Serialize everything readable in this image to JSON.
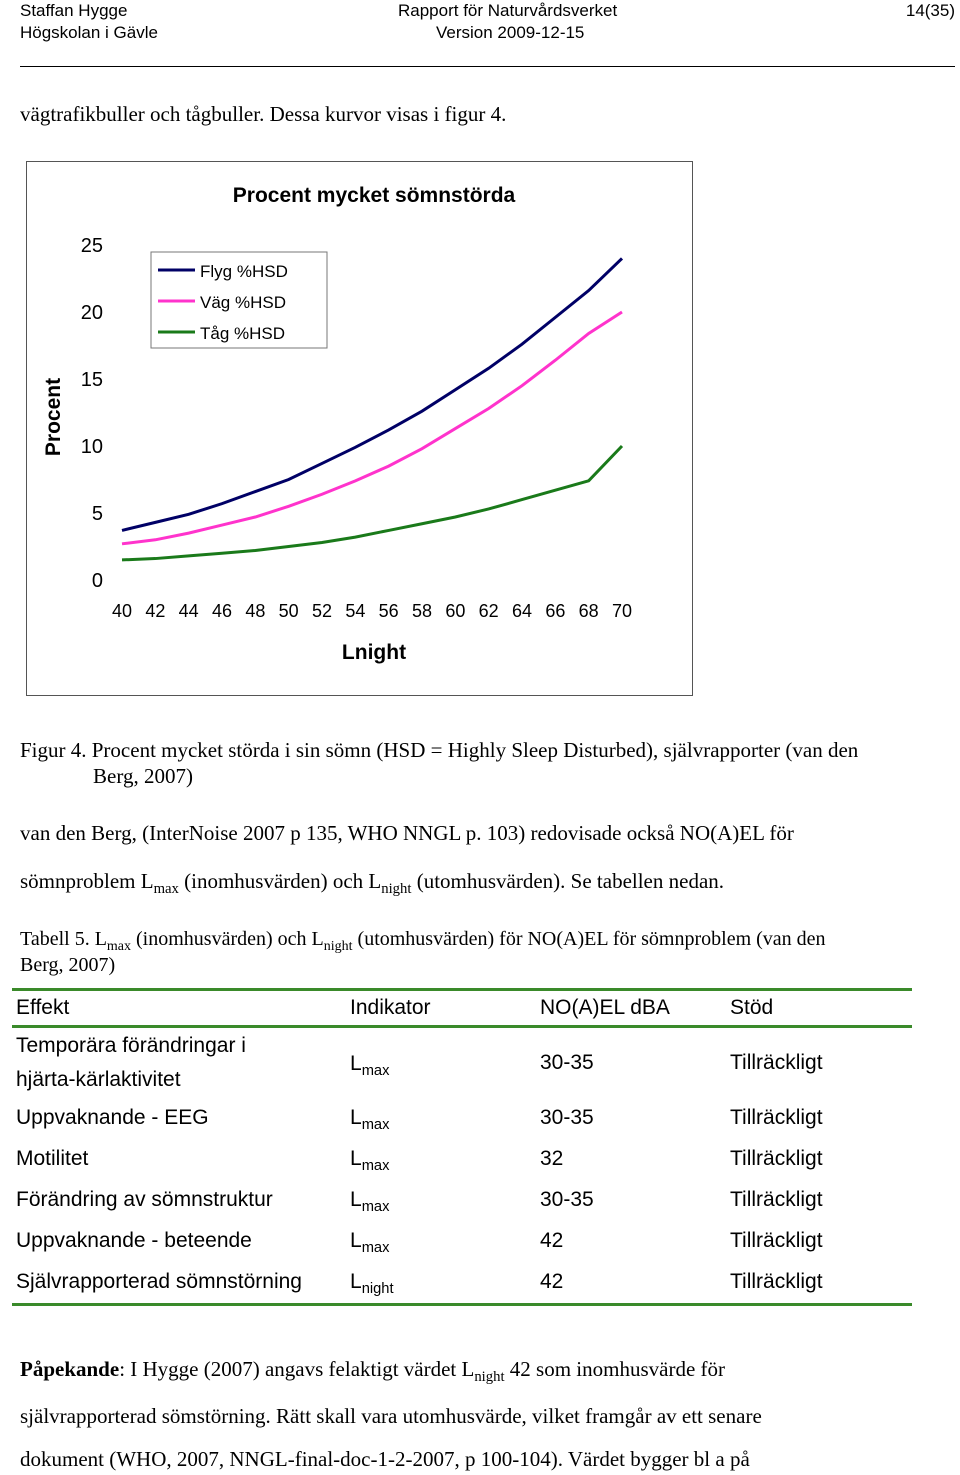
{
  "header": {
    "author": "Staffan Hygge",
    "institution": "Högskolan i Gävle",
    "report": "Rapport för Naturvårdsverket",
    "version": "Version 2009-12-15",
    "page": "14(35)"
  },
  "intro_line": "vägtrafikbuller och tågbuller. Dessa kurvor visas i figur 4.",
  "chart_data": {
    "type": "line",
    "title": "Procent mycket sömnstörda",
    "xlabel": "Lnight",
    "ylabel": "Procent",
    "x": [
      40,
      42,
      44,
      46,
      48,
      50,
      52,
      54,
      56,
      58,
      60,
      62,
      64,
      66,
      68,
      70
    ],
    "x_ticks": [
      "40",
      "42",
      "44",
      "46",
      "48",
      "50",
      "52",
      "54",
      "56",
      "58",
      "60",
      "62",
      "64",
      "66",
      "68",
      "70"
    ],
    "y_ticks": [
      "0",
      "5",
      "10",
      "15",
      "20",
      "25"
    ],
    "ylim": [
      0,
      25
    ],
    "grid": false,
    "legend": "top-left",
    "series": [
      {
        "name": "Flyg %HSD",
        "color": "#000066",
        "values": [
          3.7,
          4.3,
          4.9,
          5.7,
          6.6,
          7.5,
          8.7,
          9.9,
          11.2,
          12.6,
          14.2,
          15.8,
          17.6,
          19.6,
          21.6,
          24.0
        ]
      },
      {
        "name": "Väg %HSD",
        "color": "#ff33cc",
        "values": [
          2.7,
          3.0,
          3.5,
          4.1,
          4.7,
          5.5,
          6.4,
          7.4,
          8.5,
          9.8,
          11.3,
          12.8,
          14.5,
          16.4,
          18.4,
          20.0
        ]
      },
      {
        "name": "Tåg %HSD",
        "color": "#1a7a1a",
        "values": [
          1.5,
          1.6,
          1.8,
          2.0,
          2.2,
          2.5,
          2.8,
          3.2,
          3.7,
          4.2,
          4.7,
          5.3,
          6.0,
          6.7,
          7.4,
          10.0
        ]
      }
    ]
  },
  "figure_caption": {
    "line1": "Figur 4. Procent mycket störda i sin sömn (HSD = Highly Sleep Disturbed), självrapporter (van den",
    "line2": "Berg, 2007)"
  },
  "para1": {
    "line1": "van den Berg, (InterNoise 2007 p 135, WHO NNGL p. 103) redovisade också NO(A)EL för",
    "l2a": "sömnproblem L",
    "l2b": "max",
    "l2c": " (inomhusvärden) och L",
    "l2d": "night",
    "l2e": " (utomhusvärden). Se tabellen nedan."
  },
  "table_caption": {
    "a": "Tabell 5. L",
    "b": "max",
    "c": " (inomhusvärden) och L",
    "d": "night",
    "e": " (utomhusvärden) för NO(A)EL för sömnproblem (van den",
    "line2": "Berg, 2007)"
  },
  "table": {
    "headers": [
      "Effekt",
      "Indikator",
      "NO(A)EL dBA",
      "Stöd"
    ],
    "rows": [
      {
        "effekt1": "Temporära förändringar i",
        "effekt2": "hjärta-kärlaktivitet",
        "ind_L": "L",
        "ind_sub": "max",
        "noael": "30-35",
        "stod": "Tillräckligt"
      },
      {
        "effekt1": "Uppvaknande - EEG",
        "ind_L": "L",
        "ind_sub": "max",
        "noael": "30-35",
        "stod": "Tillräckligt"
      },
      {
        "effekt1": "Motilitet",
        "ind_L": "L",
        "ind_sub": "max",
        "noael": "32",
        "stod": "Tillräckligt"
      },
      {
        "effekt1": "Förändring av sömnstruktur",
        "ind_L": "L",
        "ind_sub": "max",
        "noael": "30-35",
        "stod": "Tillräckligt"
      },
      {
        "effekt1": "Uppvaknande - beteende",
        "ind_L": "L",
        "ind_sub": "max",
        "noael": "42",
        "stod": "Tillräckligt"
      },
      {
        "effekt1": "Självrapporterad sömnstörning",
        "ind_L": "L",
        "ind_sub": "night",
        "noael": "42",
        "stod": "Tillräckligt"
      }
    ]
  },
  "note": {
    "bold": "Påpekande",
    "l1a": ": I Hygge (2007) angavs felaktigt värdet L",
    "l1b": "night",
    "l1c": " 42 som inomhusvärde för",
    "line2": "självrapporterad sömstörning. Rätt skall vara utomhusvärde, vilket framgår av ett senare",
    "line3": "dokument (WHO, 2007, NNGL-final-doc-1-2-2007, p 100-104). Värdet bygger bl a på"
  }
}
